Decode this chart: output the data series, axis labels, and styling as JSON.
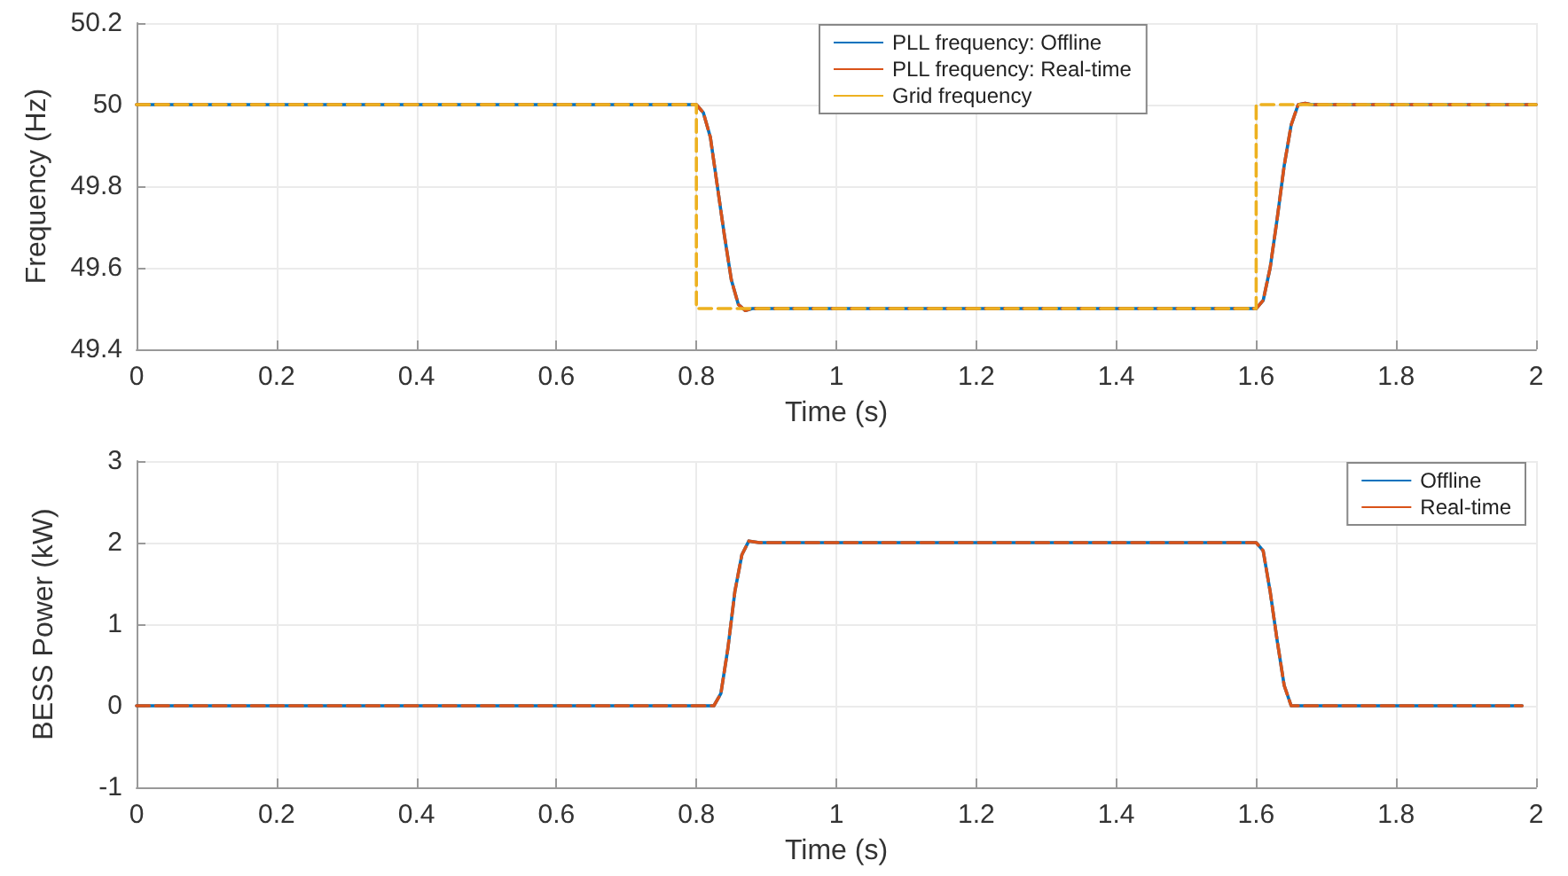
{
  "chart_data": [
    {
      "type": "line",
      "xlabel": "Time (s)",
      "ylabel": "Frequency (Hz)",
      "xlim": [
        0,
        2
      ],
      "xticks": [
        0,
        0.2,
        0.4,
        0.6,
        0.8,
        1,
        1.2,
        1.4,
        1.6,
        1.8,
        2
      ],
      "ylim": [
        49.4,
        50.2
      ],
      "yticks": [
        49.4,
        49.6,
        49.8,
        50,
        50.2
      ],
      "grid": true,
      "legend": "top",
      "series": [
        {
          "name": "PLL frequency: Offline",
          "color": "#0072bd",
          "line_style": "solid",
          "x": [
            0,
            0.8,
            0.81,
            0.82,
            0.83,
            0.84,
            0.85,
            0.86,
            0.87,
            0.88,
            1.6,
            1.61,
            1.62,
            1.63,
            1.64,
            1.65,
            1.66,
            1.67,
            1.68,
            2
          ],
          "values": [
            50,
            50,
            49.98,
            49.92,
            49.8,
            49.68,
            49.57,
            49.51,
            49.495,
            49.5,
            49.5,
            49.52,
            49.6,
            49.72,
            49.85,
            49.95,
            50,
            50.003,
            50,
            50
          ]
        },
        {
          "name": "PLL frequency: Real-time",
          "color": "#d95319",
          "line_style": "dashed",
          "x": [
            0,
            0.8,
            0.81,
            0.82,
            0.83,
            0.84,
            0.85,
            0.86,
            0.87,
            0.88,
            1.6,
            1.61,
            1.62,
            1.63,
            1.64,
            1.65,
            1.66,
            1.67,
            1.68,
            2
          ],
          "values": [
            50,
            50,
            49.98,
            49.92,
            49.8,
            49.68,
            49.57,
            49.51,
            49.495,
            49.5,
            49.5,
            49.52,
            49.6,
            49.72,
            49.85,
            49.95,
            50,
            50.003,
            50,
            50
          ]
        },
        {
          "name": "Grid frequency",
          "color": "#edb120",
          "line_style": "dashed",
          "x": [
            0,
            0.8,
            0.8,
            1.6,
            1.6,
            2
          ],
          "values": [
            50,
            50,
            49.5,
            49.5,
            50,
            50
          ]
        }
      ]
    },
    {
      "type": "line",
      "xlabel": "Time (s)",
      "ylabel": "BESS Power (kW)",
      "xlim": [
        0,
        2
      ],
      "xticks": [
        0,
        0.2,
        0.4,
        0.6,
        0.8,
        1,
        1.2,
        1.4,
        1.6,
        1.8,
        2
      ],
      "ylim": [
        -1,
        3
      ],
      "yticks": [
        -1,
        0,
        1,
        2,
        3
      ],
      "grid": true,
      "legend": "top right",
      "series": [
        {
          "name": "Offline",
          "color": "#0072bd",
          "line_style": "solid",
          "x": [
            0,
            0.825,
            0.835,
            0.845,
            0.855,
            0.865,
            0.875,
            0.89,
            1.6,
            1.61,
            1.62,
            1.63,
            1.64,
            1.65,
            1.98
          ],
          "values": [
            0,
            0,
            0.15,
            0.7,
            1.4,
            1.85,
            2.02,
            2,
            2,
            1.9,
            1.4,
            0.8,
            0.25,
            0,
            0
          ]
        },
        {
          "name": "Real-time",
          "color": "#d95319",
          "line_style": "dashed",
          "x": [
            0,
            0.825,
            0.835,
            0.845,
            0.855,
            0.865,
            0.875,
            0.89,
            1.6,
            1.61,
            1.62,
            1.63,
            1.64,
            1.65,
            1.98
          ],
          "values": [
            0,
            0,
            0.15,
            0.7,
            1.4,
            1.85,
            2.02,
            2,
            2,
            1.9,
            1.4,
            0.8,
            0.25,
            0,
            0
          ]
        }
      ]
    }
  ]
}
